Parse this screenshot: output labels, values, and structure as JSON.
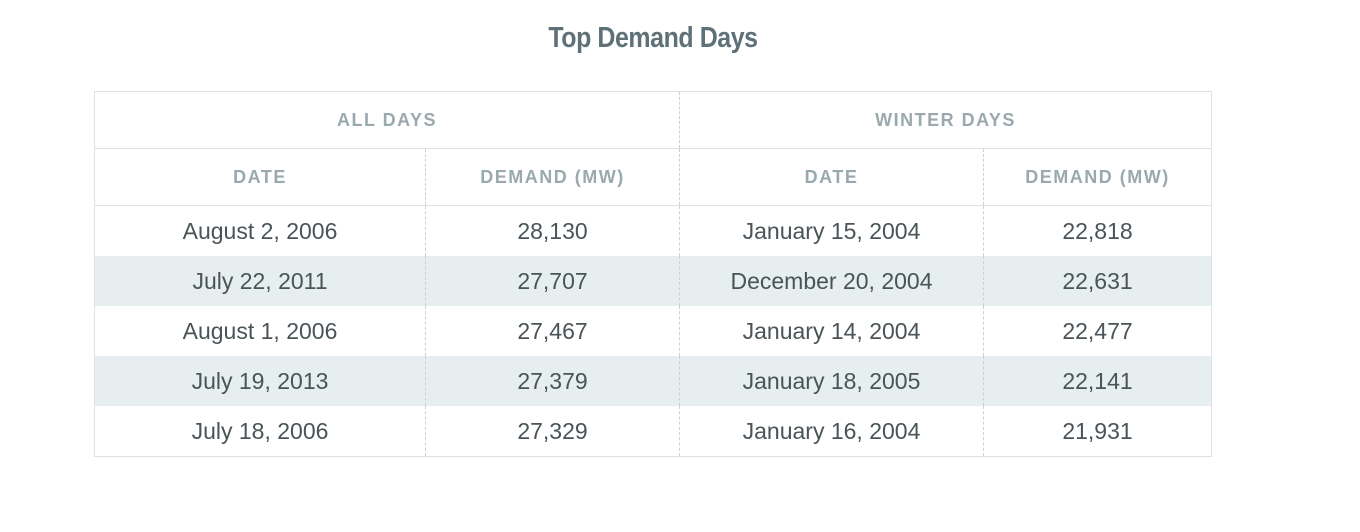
{
  "title": "Top Demand Days",
  "groups": {
    "all_days": "ALL DAYS",
    "winter_days": "WINTER DAYS"
  },
  "columns": {
    "all_date": "DATE",
    "all_demand": "DEMAND (MW)",
    "winter_date": "DATE",
    "winter_demand": "DEMAND (MW)"
  },
  "rows": [
    {
      "all_date": "August 2, 2006",
      "all_demand": "28,130",
      "winter_date": "January 15, 2004",
      "winter_demand": "22,818"
    },
    {
      "all_date": "July 22, 2011",
      "all_demand": "27,707",
      "winter_date": "December 20, 2004",
      "winter_demand": "22,631"
    },
    {
      "all_date": "August 1, 2006",
      "all_demand": "27,467",
      "winter_date": "January 14, 2004",
      "winter_demand": "22,477"
    },
    {
      "all_date": "July 19, 2013",
      "all_demand": "27,379",
      "winter_date": "January 18, 2005",
      "winter_demand": "22,141"
    },
    {
      "all_date": "July 18, 2006",
      "all_demand": "27,329",
      "winter_date": "January 16, 2004",
      "winter_demand": "21,931"
    }
  ],
  "colors": {
    "title": "#5f7178",
    "header": "#9aa9ae",
    "stripe": "#e7eef0",
    "text": "#4a5357"
  }
}
